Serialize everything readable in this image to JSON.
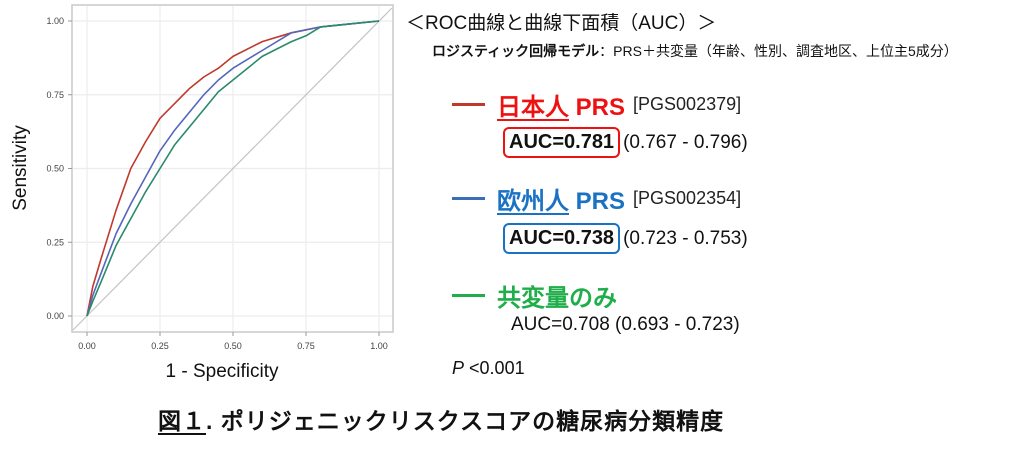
{
  "chart_data": {
    "type": "line",
    "xlabel": "1 - Specificity",
    "ylabel": "Sensitivity",
    "xlim": [
      0,
      1
    ],
    "ylim": [
      0,
      1
    ],
    "xticks": [
      "0.00",
      "0.25",
      "0.50",
      "0.75",
      "1.00"
    ],
    "yticks": [
      "0.00",
      "0.25",
      "0.50",
      "0.75",
      "1.00"
    ],
    "grid": true,
    "diagonal_reference": true,
    "series": [
      {
        "color": "#c0392b",
        "x": [
          0,
          0.02,
          0.05,
          0.1,
          0.15,
          0.2,
          0.25,
          0.3,
          0.35,
          0.4,
          0.45,
          0.5,
          0.6,
          0.7,
          0.8,
          0.9,
          1
        ],
        "y": [
          0,
          0.1,
          0.2,
          0.36,
          0.5,
          0.59,
          0.67,
          0.72,
          0.77,
          0.81,
          0.84,
          0.88,
          0.93,
          0.96,
          0.98,
          0.99,
          1
        ]
      },
      {
        "color": "#5566bb",
        "x": [
          0,
          0.02,
          0.05,
          0.1,
          0.15,
          0.2,
          0.25,
          0.3,
          0.35,
          0.4,
          0.45,
          0.5,
          0.6,
          0.7,
          0.8,
          0.9,
          1
        ],
        "y": [
          0,
          0.07,
          0.15,
          0.28,
          0.38,
          0.47,
          0.56,
          0.63,
          0.69,
          0.75,
          0.8,
          0.84,
          0.9,
          0.96,
          0.98,
          0.99,
          1
        ]
      },
      {
        "color": "#2a8a6e",
        "x": [
          0,
          0.02,
          0.05,
          0.1,
          0.15,
          0.2,
          0.25,
          0.3,
          0.35,
          0.4,
          0.45,
          0.5,
          0.6,
          0.7,
          0.75,
          0.8,
          0.9,
          1
        ],
        "y": [
          0,
          0.05,
          0.12,
          0.24,
          0.33,
          0.42,
          0.5,
          0.58,
          0.64,
          0.7,
          0.76,
          0.8,
          0.88,
          0.93,
          0.95,
          0.98,
          0.99,
          1
        ]
      }
    ]
  },
  "header": {
    "title": "＜ROC曲線と曲線下面積（AUC）＞",
    "subtitle_bold": "ロジスティック回帰モデル",
    "subtitle_rest": "：PRS＋共変量（年齢、性別、調査地区、上位主5成分）"
  },
  "legend": [
    {
      "name": "日本人",
      "suffix": "PRS",
      "code": "[PGS002379]",
      "auc": "AUC=0.781",
      "ci": "(0.767 - 0.796)",
      "color": "#ee1111",
      "line_color": "#c0392b"
    },
    {
      "name": "欧州人",
      "suffix": "PRS",
      "code": "[PGS002354]",
      "auc": "AUC=0.738",
      "ci": "(0.723 - 0.753)",
      "color": "#1a72c4",
      "line_color": "#3a6fb8"
    },
    {
      "name": "共変量のみ",
      "auc": "AUC=0.708",
      "ci": "(0.693 - 0.723)",
      "color": "#1fae4a",
      "line_color": "#1fae4a"
    }
  ],
  "pvalue": {
    "label": "P",
    "value": "<0.001"
  },
  "caption": {
    "fig": "図１",
    "text": ". ポリジェニックリスクスコアの糖尿病分類精度"
  }
}
